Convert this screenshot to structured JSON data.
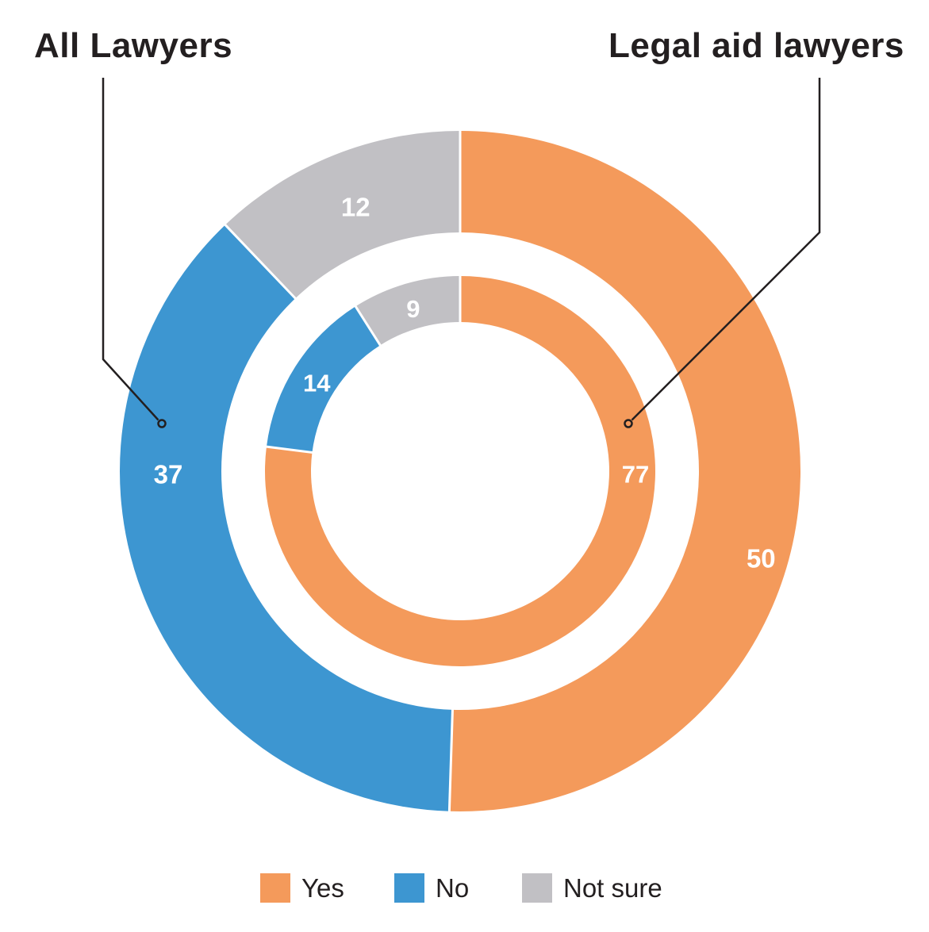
{
  "page": {
    "background": "#FFFFFF"
  },
  "titles": {
    "left": "All Lawyers",
    "right": "Legal aid lawyers"
  },
  "legend": {
    "items": [
      {
        "label": "Yes",
        "color": "#F49A5B"
      },
      {
        "label": "No",
        "color": "#3D96D1"
      },
      {
        "label": "Not sure",
        "color": "#C1C0C4"
      }
    ]
  },
  "chart_data": {
    "type": "pie",
    "subtype": "nested_donut",
    "title": "",
    "categories": [
      "Yes",
      "No",
      "Not sure"
    ],
    "colors": [
      "#F49A5B",
      "#3D96D1",
      "#C1C0C4"
    ],
    "series": [
      {
        "name": "All Lawyers",
        "ring": "outer",
        "values": [
          50,
          37,
          12
        ]
      },
      {
        "name": "Legal aid lawyers",
        "ring": "inner",
        "values": [
          77,
          14,
          9
        ]
      }
    ],
    "start_angle_deg": 0,
    "direction": "clockwise",
    "value_label_color": "#FFFFFF",
    "slice_separator_color": "#FFFFFF",
    "annotation_line_color": "#231F20",
    "legend_position": "bottom"
  }
}
